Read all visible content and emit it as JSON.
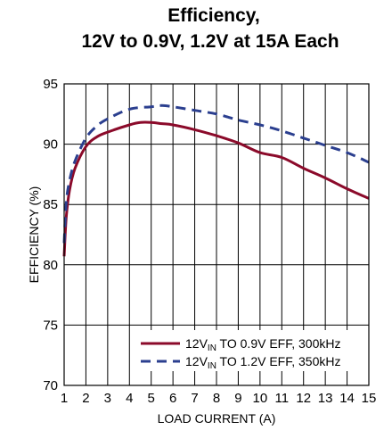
{
  "chart_data": {
    "type": "line",
    "title_line1": "Efficiency,",
    "title_line2": "12V to 0.9V, 1.2V at 15A Each",
    "xlabel": "LOAD CURRENT (A)",
    "ylabel": "EFFICIENCY (%)",
    "xlim": [
      1,
      15
    ],
    "ylim": [
      70,
      95
    ],
    "x_ticks": [
      "1",
      "2",
      "3",
      "4",
      "5",
      "6",
      "7",
      "8",
      "9",
      "10",
      "11",
      "12",
      "13",
      "14",
      "15"
    ],
    "y_ticks": [
      "70",
      "75",
      "80",
      "85",
      "90",
      "95"
    ],
    "x_tick_values": [
      1,
      2,
      3,
      4,
      5,
      6,
      7,
      8,
      9,
      10,
      11,
      12,
      13,
      14,
      15
    ],
    "y_tick_values": [
      70,
      75,
      80,
      85,
      90,
      95
    ],
    "grid": true,
    "legend_position": "bottom-right",
    "series": [
      {
        "legend_prefix": "12V",
        "legend_sub": "IN",
        "legend_suffix": " TO 0.9V EFF, 300kHz",
        "color": "#8b0a2a",
        "dash": "solid",
        "x": [
          1.0,
          1.1,
          1.25,
          1.5,
          2.0,
          2.5,
          3.0,
          4.0,
          4.5,
          5.0,
          5.5,
          6.0,
          7.0,
          8.0,
          9.0,
          10.0,
          11.0,
          12.0,
          13.0,
          14.0,
          15.0
        ],
        "y": [
          80.7,
          84.0,
          86.2,
          88.0,
          89.8,
          90.6,
          91.0,
          91.6,
          91.8,
          91.8,
          91.7,
          91.6,
          91.2,
          90.7,
          90.1,
          89.3,
          88.9,
          88.0,
          87.2,
          86.3,
          85.5
        ]
      },
      {
        "legend_prefix": "12V",
        "legend_sub": "IN",
        "legend_suffix": " TO 1.2V EFF, 350kHz",
        "color": "#2b3f8f",
        "dash": "dashed",
        "x": [
          1.0,
          1.1,
          1.25,
          1.5,
          2.0,
          2.5,
          3.0,
          4.0,
          5.0,
          5.5,
          6.0,
          7.0,
          8.0,
          9.0,
          10.0,
          11.0,
          12.0,
          13.0,
          14.0,
          15.0
        ],
        "y": [
          81.8,
          85.2,
          87.0,
          88.6,
          90.5,
          91.5,
          92.1,
          92.9,
          93.1,
          93.2,
          93.1,
          92.8,
          92.5,
          92.0,
          91.6,
          91.1,
          90.5,
          89.9,
          89.3,
          88.5
        ]
      }
    ]
  }
}
